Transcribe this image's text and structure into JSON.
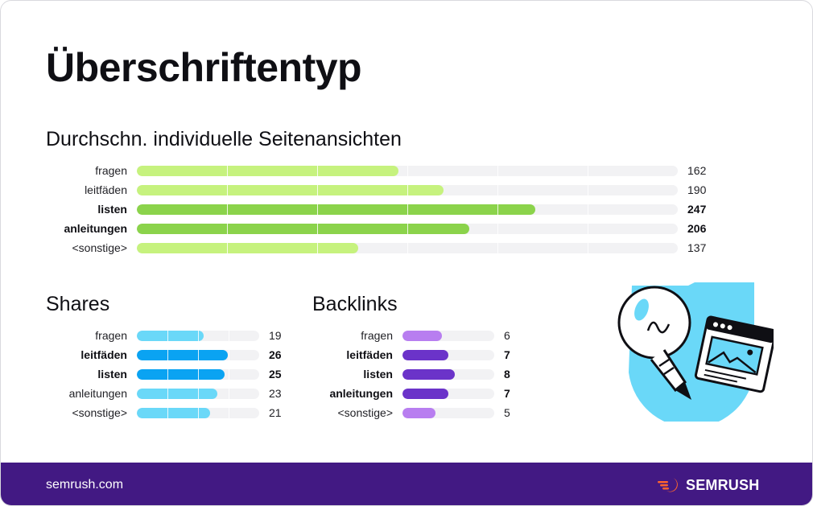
{
  "page": {
    "title": "Überschriftentyp",
    "footer_site": "semrush.com",
    "brand_name": "SEMRUSH"
  },
  "colors": {
    "lime": "#c6f27e",
    "green": "#8bd34b",
    "cyan_light": "#6ad8f8",
    "cyan_dark": "#0aa3f2",
    "purple_light": "#b87ef0",
    "purple_dark": "#6b33c9",
    "footer": "#421983",
    "brand_orange": "#ff642d"
  },
  "chart_data": [
    {
      "type": "bar",
      "orientation": "horizontal",
      "title": "Durchschn. individuelle Seitenansichten",
      "categories": [
        "fragen",
        "leitfäden",
        "listen",
        "anleitungen",
        "<sonstige>"
      ],
      "values": [
        162,
        190,
        247,
        206,
        137
      ],
      "highlighted": [
        false,
        false,
        true,
        true,
        false
      ],
      "xlim": [
        0,
        335
      ],
      "grid": true
    },
    {
      "type": "bar",
      "orientation": "horizontal",
      "title": "Shares",
      "categories": [
        "fragen",
        "leitfäden",
        "listen",
        "anleitungen",
        "<sonstige>"
      ],
      "values": [
        19,
        26,
        25,
        23,
        21
      ],
      "highlighted": [
        false,
        true,
        true,
        false,
        false
      ],
      "xlim": [
        0,
        35
      ],
      "grid": true
    },
    {
      "type": "bar",
      "orientation": "horizontal",
      "title": "Backlinks",
      "categories": [
        "fragen",
        "leitfäden",
        "listen",
        "anleitungen",
        "<sonstige>"
      ],
      "values": [
        6,
        7,
        8,
        7,
        5
      ],
      "highlighted": [
        false,
        true,
        true,
        true,
        false
      ],
      "xlim": [
        0,
        14
      ],
      "grid": false
    }
  ]
}
